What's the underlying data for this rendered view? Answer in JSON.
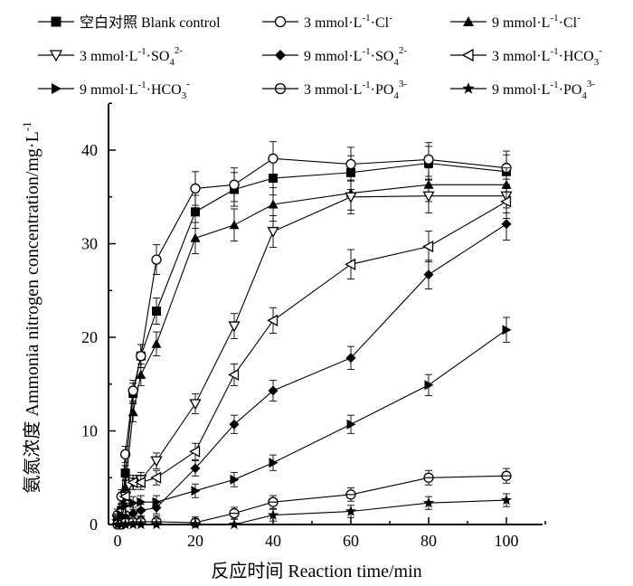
{
  "chart_data": {
    "type": "line",
    "xlabel": "反应时间 Reaction time/min",
    "ylabel_cn": "氨氮浓度",
    "ylabel_en": "Ammonia nitrogen concentration/mg·L",
    "ylabel_sup": "-1",
    "xlim": [
      0,
      110
    ],
    "ylim": [
      0,
      45
    ],
    "xticks": [
      0,
      20,
      40,
      60,
      80,
      100
    ],
    "yticks": [
      0,
      10,
      20,
      30,
      40
    ],
    "x": [
      0,
      1,
      2,
      4,
      6,
      10,
      20,
      30,
      40,
      60,
      80,
      100
    ],
    "series": [
      {
        "name": "空白对照 Blank control",
        "legend_sub": "",
        "legend_sup": "",
        "marker": "square-filled",
        "values": [
          0.5,
          1.5,
          5.5,
          14,
          18,
          22.8,
          33.4,
          35.8,
          37,
          37.6,
          38.6,
          37.7
        ]
      },
      {
        "name": "3 mmol·L",
        "legend_sub": "",
        "legend_sup": "-1",
        "legend_tail": "·Cl",
        "legend_sup2": "-",
        "marker": "circle-open",
        "values": [
          1,
          3,
          7.5,
          14.3,
          18,
          28.3,
          35.9,
          36.3,
          39.1,
          38.5,
          39,
          38.1
        ]
      },
      {
        "name": "9 mmol·L",
        "legend_sub": "",
        "legend_sup": "-1",
        "legend_tail": "·Cl",
        "legend_sup2": "-",
        "marker": "triangle-up-filled",
        "values": [
          0.3,
          1,
          4,
          12,
          16,
          19.3,
          30.6,
          32,
          34.2,
          35.4,
          36.3,
          36.3
        ]
      },
      {
        "name": "3 mmol·L",
        "legend_sup": "-1",
        "legend_tail": "·SO",
        "legend_sub2": "4",
        "legend_sup2": "2-",
        "marker": "triangle-down-open",
        "values": [
          0.5,
          1,
          3,
          4.5,
          4.8,
          6.8,
          12.9,
          21.2,
          31.3,
          35,
          35.1,
          35.1
        ]
      },
      {
        "name": "9 mmol·L",
        "legend_sup": "-1",
        "legend_tail": "·SO",
        "legend_sub2": "4",
        "legend_sup2": "2-",
        "marker": "diamond-filled",
        "values": [
          0.2,
          0.4,
          0.8,
          1.2,
          1.5,
          1.8,
          6,
          10.7,
          14.3,
          17.8,
          26.7,
          32.1
        ]
      },
      {
        "name": "3 mmol·L",
        "legend_sup": "-1",
        "legend_tail": "·HCO",
        "legend_sub2": "3",
        "legend_sup2": "-",
        "marker": "triangle-left-open",
        "values": [
          0.5,
          1.5,
          3,
          4.5,
          4.5,
          5,
          7.8,
          16,
          21.8,
          27.8,
          29.7,
          34.5
        ]
      },
      {
        "name": "9 mmol·L",
        "legend_sup": "-1",
        "legend_tail": "·HCO",
        "legend_sub2": "3",
        "legend_sup2": "-",
        "marker": "triangle-right-filled",
        "values": [
          0.3,
          1,
          2,
          2.3,
          2.4,
          2.4,
          3.6,
          4.8,
          6.6,
          10.7,
          14.9,
          20.8
        ]
      },
      {
        "name": "3 mmol·L",
        "legend_sup": "-1",
        "legend_tail": "·PO",
        "legend_sub2": "4",
        "legend_sup2": "3-",
        "marker": "circle-crossed",
        "values": [
          0,
          0,
          0.2,
          0.3,
          0.3,
          0.3,
          0.2,
          1.2,
          2.4,
          3.2,
          5,
          5.2
        ]
      },
      {
        "name": "9 mmol·L",
        "legend_sup": "-1",
        "legend_tail": "·PO",
        "legend_sub2": "4",
        "legend_sup2": "3-",
        "marker": "star-filled",
        "values": [
          0,
          0,
          0,
          0,
          0,
          0,
          0,
          0,
          1,
          1.4,
          2.3,
          2.6
        ]
      }
    ],
    "error_bars": true,
    "legend_position": "top",
    "grid": false
  }
}
